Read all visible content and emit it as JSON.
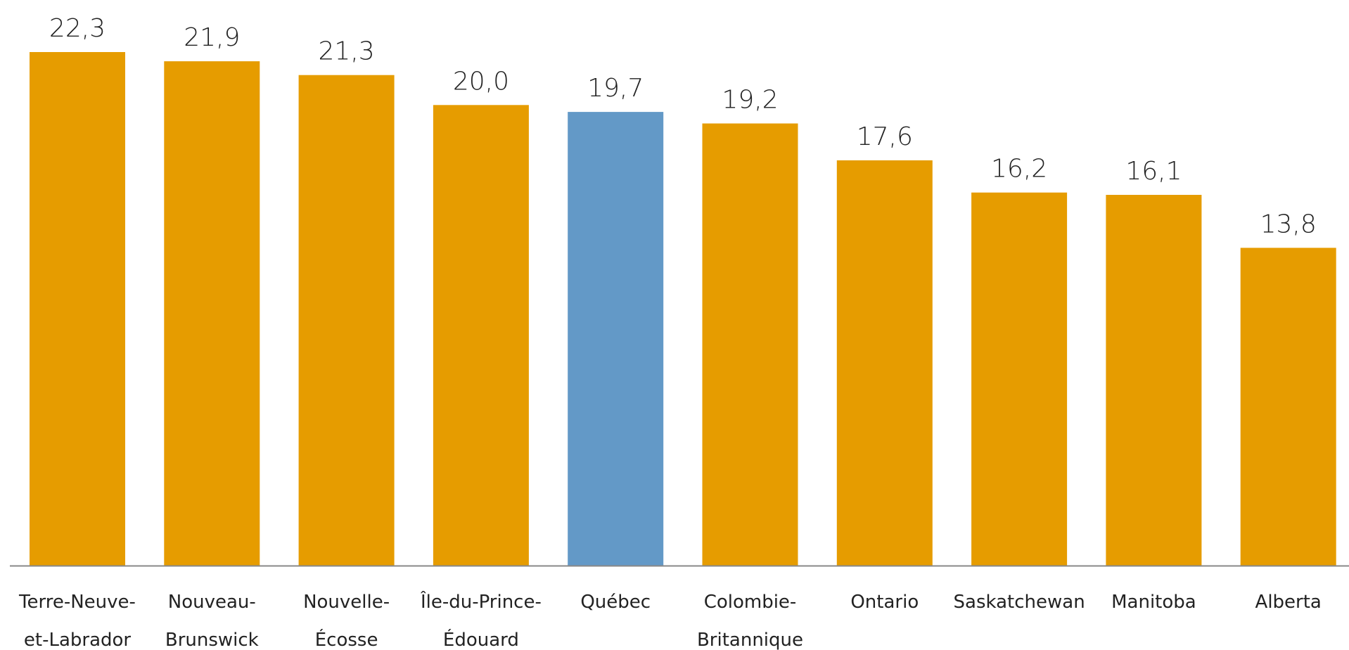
{
  "chart_data": {
    "type": "bar",
    "categories": [
      [
        "Terre-Neuve-",
        "et-Labrador"
      ],
      [
        "Nouveau-",
        "Brunswick"
      ],
      [
        "Nouvelle-",
        "Écosse"
      ],
      [
        "Île-du-Prince-",
        "Édouard"
      ],
      [
        "Québec"
      ],
      [
        "Colombie-",
        "Britannique"
      ],
      [
        "Ontario"
      ],
      [
        "Saskatchewan"
      ],
      [
        "Manitoba"
      ],
      [
        "Alberta"
      ]
    ],
    "values": [
      22.3,
      21.9,
      21.3,
      20.0,
      19.7,
      19.2,
      17.6,
      16.2,
      16.1,
      13.8
    ],
    "value_labels": [
      "22,3",
      "21,9",
      "21,3",
      "20,0",
      "19,7",
      "19,2",
      "17,6",
      "16,2",
      "16,1",
      "13,8"
    ],
    "highlight_category": "Québec",
    "ylim": [
      0,
      22.3
    ],
    "grid": false,
    "title": "",
    "xlabel": "",
    "ylabel": ""
  },
  "colors": {
    "bar": "#E69C00",
    "highlight": "#6399C7",
    "axis": "#888888"
  }
}
